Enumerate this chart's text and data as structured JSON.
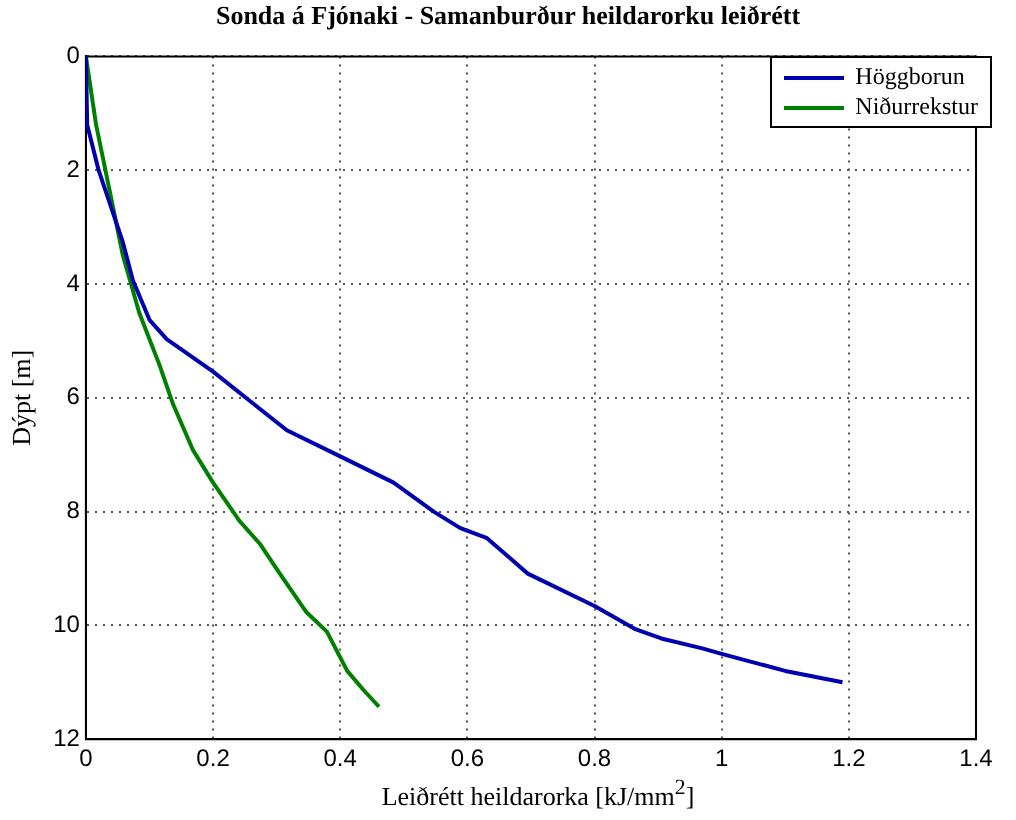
{
  "chart_data": {
    "type": "line",
    "title": "Sonda á Fjónaki - Samanburður heildarorku leiðrétt",
    "xlabel": "Leiðrétt heildarorka [kJ/mm$^{2}$]",
    "ylabel": "Dýpt [m]",
    "xlim": [
      0,
      1.4
    ],
    "xticks": [
      0,
      0.2,
      0.4,
      0.6,
      0.8,
      1,
      1.2,
      1.4
    ],
    "ylim": [
      12,
      0
    ],
    "yticks": [
      0,
      2,
      4,
      6,
      8,
      10,
      12
    ],
    "grid": true,
    "legend": "top right",
    "marker": "none",
    "line_style": "solid",
    "series": [
      {
        "name": "Höggborun",
        "color": "#0000b0",
        "x": [
          0,
          0.002,
          0.02,
          0.058,
          0.074,
          0.1,
          0.127,
          0.2,
          0.263,
          0.316,
          0.4,
          0.484,
          0.547,
          0.589,
          0.63,
          0.695,
          0.8,
          0.863,
          0.905,
          0.968,
          1.0,
          1.1,
          1.19
        ],
        "values": [
          0,
          1.2,
          2,
          3.26,
          3.94,
          4.63,
          4.97,
          5.54,
          6.1,
          6.57,
          7.03,
          7.49,
          8.0,
          8.29,
          8.46,
          9.09,
          9.66,
          10.06,
          10.23,
          10.4,
          10.5,
          10.8,
          11.0
        ]
      },
      {
        "name": "Niðurrekstur",
        "color": "#008000",
        "x": [
          0,
          0.016,
          0.037,
          0.058,
          0.084,
          0.116,
          0.137,
          0.168,
          0.2,
          0.242,
          0.274,
          0.305,
          0.347,
          0.379,
          0.411,
          0.437,
          0.461
        ],
        "values": [
          0,
          1.2,
          2.34,
          3.49,
          4.51,
          5.43,
          6.11,
          6.91,
          7.49,
          8.17,
          8.57,
          9.09,
          9.77,
          10.11,
          10.8,
          11.14,
          11.43
        ]
      }
    ]
  }
}
